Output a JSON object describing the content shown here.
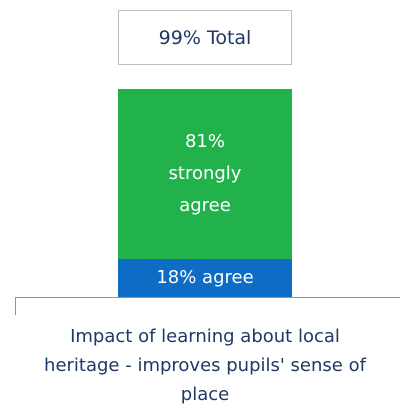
{
  "chart_data": {
    "type": "stacked_bar",
    "categories": [
      "Impact of learning about local heritage - improves pupils' sense of place"
    ],
    "total": {
      "value": 99,
      "label": "99% Total"
    },
    "series": [
      {
        "name": "strongly agree",
        "color": "#21b24b",
        "values": [
          81
        ],
        "value_labels": [
          "81% strongly agree"
        ]
      },
      {
        "name": "agree",
        "color": "#0e6cc4",
        "values": [
          18
        ],
        "value_labels": [
          "18% agree"
        ]
      }
    ]
  }
}
